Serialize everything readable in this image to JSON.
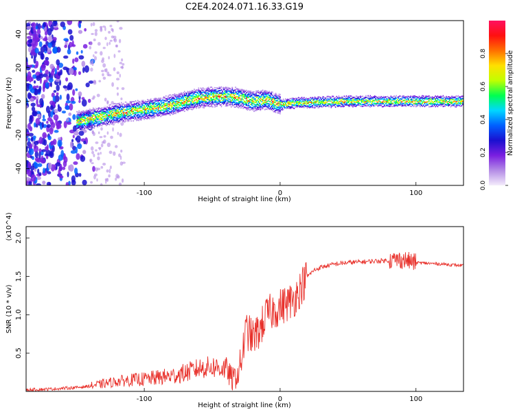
{
  "figure_title": "C2E4.2024.071.16.33.G19",
  "chart_data": [
    {
      "type": "heatmap",
      "title": "",
      "xlabel": "Height of straight line (km)",
      "ylabel": "Frequency (Hz)",
      "xlim": [
        -187,
        135
      ],
      "ylim": [
        -50,
        48
      ],
      "x_ticks": [
        -100,
        0,
        100
      ],
      "y_ticks": [
        -40,
        -20,
        0,
        20,
        40
      ],
      "colorbar": {
        "label": "Normalized spectral amplitude",
        "range": [
          0,
          1
        ],
        "ticks": [
          "0.0",
          "0.2",
          "0.4",
          "0.6",
          "0.8"
        ],
        "colors": [
          "#f4ecfb",
          "#b48ce6",
          "#7a1fe0",
          "#1a10d0",
          "#0060ff",
          "#00d8ff",
          "#00ff50",
          "#c0ff00",
          "#ffe000",
          "#ff7000",
          "#ff1010",
          "#ff1060"
        ]
      },
      "ridge": {
        "x": [
          -150,
          -120,
          -100,
          -80,
          -60,
          -40,
          -30,
          -20,
          -10,
          0,
          10,
          50,
          100,
          135
        ],
        "y": [
          -12,
          -7,
          -5,
          -2,
          2,
          3,
          2,
          0,
          1,
          -2,
          -1,
          0,
          0,
          0
        ]
      }
    },
    {
      "type": "line",
      "title": "",
      "xlabel": "Height of straight line (km)",
      "ylabel": "SNR (10 * v/v)",
      "y_multiplier": "(x10^4)",
      "xlim": [
        -187,
        135
      ],
      "ylim": [
        0,
        2.15
      ],
      "x_ticks": [
        -100,
        0,
        100
      ],
      "y_ticks": [
        0.5,
        1.0,
        1.5,
        2.0
      ],
      "color": "#e8302a",
      "x": [
        -187,
        -170,
        -160,
        -150,
        -140,
        -130,
        -120,
        -110,
        -100,
        -90,
        -80,
        -70,
        -60,
        -50,
        -40,
        -35,
        -30,
        -25,
        -20,
        -15,
        -10,
        -5,
        0,
        5,
        10,
        15,
        20,
        25,
        30,
        40,
        50,
        60,
        70,
        80,
        90,
        95,
        100,
        110,
        120,
        135
      ],
      "y": [
        0.02,
        0.03,
        0.04,
        0.05,
        0.07,
        0.1,
        0.13,
        0.15,
        0.16,
        0.18,
        0.2,
        0.24,
        0.3,
        0.32,
        0.3,
        0.15,
        0.25,
        0.8,
        0.7,
        0.8,
        1.0,
        1.05,
        1.1,
        1.15,
        1.2,
        1.35,
        1.5,
        1.58,
        1.62,
        1.66,
        1.68,
        1.69,
        1.7,
        1.71,
        1.72,
        1.7,
        1.68,
        1.67,
        1.66,
        1.64
      ]
    }
  ]
}
